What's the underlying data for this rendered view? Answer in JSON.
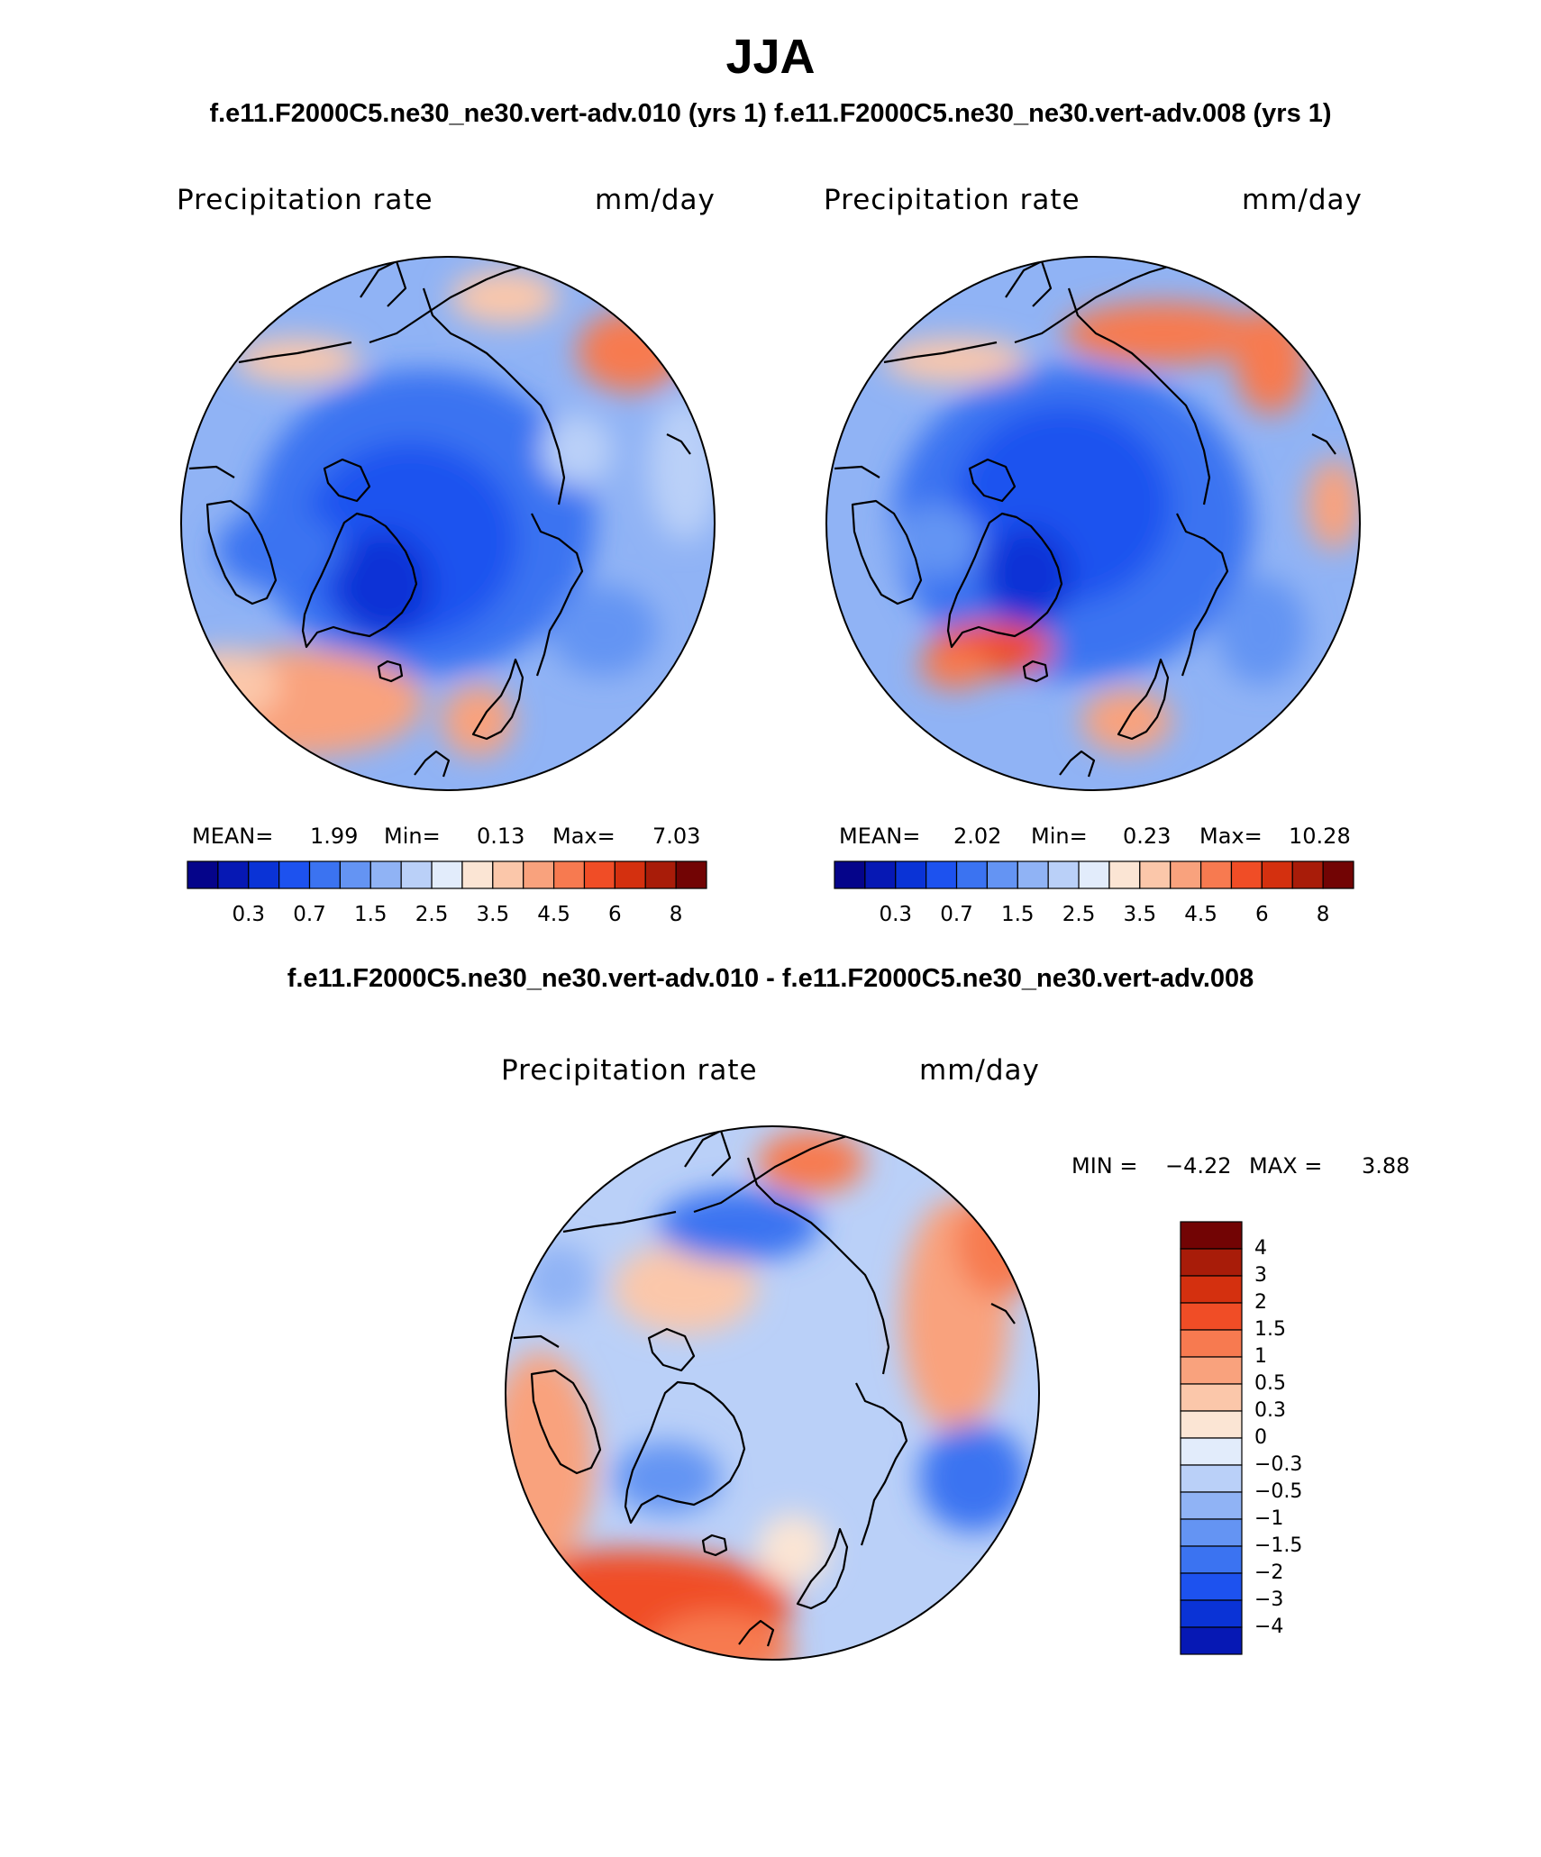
{
  "page": {
    "title": "JJA",
    "subtitle": "f.e11.F2000C5.ne30_ne30.vert-adv.010 (yrs 1) f.e11.F2000C5.ne30_ne30.vert-adv.008 (yrs 1)",
    "diff_title": "f.e11.F2000C5.ne30_ne30.vert-adv.010 - f.e11.F2000C5.ne30_ne30.vert-adv.008"
  },
  "chart_data": [
    {
      "type": "heatmap",
      "projection": "north polar stereographic",
      "title": "Precipitation rate",
      "units": "mm/day",
      "run": "f.e11.F2000C5.ne30_ne30.vert-adv.010",
      "stats": {
        "mean_label": "MEAN=",
        "mean": "1.99",
        "min_label": "Min=",
        "min": "0.13",
        "max_label": "Max=",
        "max": "7.03"
      },
      "colorbar": {
        "orientation": "horizontal",
        "levels": [
          0.2,
          0.3,
          0.5,
          0.7,
          1,
          1.5,
          2,
          2.5,
          3,
          3.5,
          4,
          4.5,
          5,
          6,
          7,
          8
        ],
        "tick_labels": [
          "0.3",
          "0.7",
          "1.5",
          "2.5",
          "3.5",
          "4.5",
          "6",
          "8"
        ],
        "colors": [
          "#05048a",
          "#0618b4",
          "#0a33d6",
          "#1d52ef",
          "#3b73f1",
          "#6494f3",
          "#90b3f5",
          "#bad0f8",
          "#e2ecfb",
          "#fbe5d4",
          "#fbc7aa",
          "#f9a27d",
          "#f77a50",
          "#f04d26",
          "#d4300f",
          "#a81c09",
          "#720404"
        ]
      },
      "description": "Mostly low precipitation (0.5-2 mm/day) over the Arctic Ocean and continents; higher rates (3.5-7 mm/day) over the North Atlantic, Greenland coast, and North Pacific."
    },
    {
      "type": "heatmap",
      "projection": "north polar stereographic",
      "title": "Precipitation rate",
      "units": "mm/day",
      "run": "f.e11.F2000C5.ne30_ne30.vert-adv.008",
      "stats": {
        "mean_label": "MEAN=",
        "mean": "2.02",
        "min_label": "Min=",
        "min": "0.23",
        "max_label": "Max=",
        "max": "10.28"
      },
      "colorbar": {
        "orientation": "horizontal",
        "levels": [
          0.2,
          0.3,
          0.5,
          0.7,
          1,
          1.5,
          2,
          2.5,
          3,
          3.5,
          4,
          4.5,
          5,
          6,
          7,
          8
        ],
        "tick_labels": [
          "0.3",
          "0.7",
          "1.5",
          "2.5",
          "3.5",
          "4.5",
          "6",
          "8"
        ],
        "colors": [
          "#05048a",
          "#0618b4",
          "#0a33d6",
          "#1d52ef",
          "#3b73f1",
          "#6494f3",
          "#90b3f5",
          "#bad0f8",
          "#e2ecfb",
          "#fbe5d4",
          "#fbc7aa",
          "#f9a27d",
          "#f77a50",
          "#f04d26",
          "#d4300f",
          "#a81c09",
          "#720404"
        ]
      },
      "description": "Similar pattern with slightly higher maxima near southern Greenland (Labrador Sea) and the North Pacific."
    },
    {
      "type": "heatmap",
      "projection": "north polar stereographic",
      "title": "Precipitation rate",
      "units": "mm/day",
      "run": "difference (010 - 008)",
      "stats": {
        "min_label": "MIN =",
        "min": "−4.22",
        "max_label": "MAX =",
        "max": "3.88"
      },
      "colorbar": {
        "orientation": "vertical",
        "levels": [
          -4,
          -3,
          -2,
          -1.5,
          -1,
          -0.5,
          -0.3,
          0,
          0.3,
          0.5,
          1,
          1.5,
          2,
          3,
          4
        ],
        "tick_labels": [
          "4",
          "3",
          "2",
          "1.5",
          "1",
          "0.5",
          "0.3",
          "0",
          "−0.3",
          "−0.5",
          "−1",
          "−1.5",
          "−2",
          "−3",
          "−4"
        ],
        "colors_top_to_bottom": [
          "#720404",
          "#a81c09",
          "#d4300f",
          "#f04d26",
          "#f77a50",
          "#f9a27d",
          "#fbc7aa",
          "#fbe5d4",
          "#e2ecfb",
          "#bad0f8",
          "#90b3f5",
          "#6494f3",
          "#3b73f1",
          "#1d52ef",
          "#0a33d6",
          "#0618b4"
        ]
      },
      "description": "Positive differences over the North Atlantic storm track and Siberian sector, negative differences over the Arctic Ocean margins and North Pacific."
    }
  ]
}
